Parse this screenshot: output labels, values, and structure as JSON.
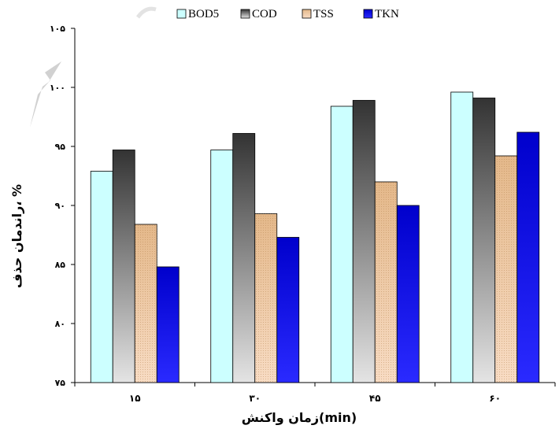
{
  "chart_data": {
    "type": "bar",
    "title": "",
    "xlabel": "زمان واکنش(min)",
    "ylabel": "راندمان حذف، %",
    "categories": [
      "۱۵",
      "۳۰",
      "۴۵",
      "۶۰"
    ],
    "ylim": [
      75,
      105
    ],
    "yticks": [
      75,
      80,
      85,
      90,
      95,
      100,
      105
    ],
    "ytick_labels": [
      "۷۵",
      "۸۰",
      "۸۵",
      "۹۰",
      "۹۵",
      "۱۰۰",
      "۱۰۵"
    ],
    "grid": false,
    "legend_position": "top",
    "series": [
      {
        "name": "BOD5",
        "color": "#ccffff",
        "values": [
          92.9,
          94.7,
          98.4,
          99.6
        ]
      },
      {
        "name": "COD",
        "color": "#444444",
        "values": [
          94.7,
          96.1,
          98.9,
          99.1
        ]
      },
      {
        "name": "TSS",
        "color": "#e8b888",
        "values": [
          88.4,
          89.3,
          92.0,
          94.2
        ]
      },
      {
        "name": "TKN",
        "color": "#0000ee",
        "values": [
          84.8,
          87.3,
          90.0,
          96.2
        ]
      }
    ]
  }
}
